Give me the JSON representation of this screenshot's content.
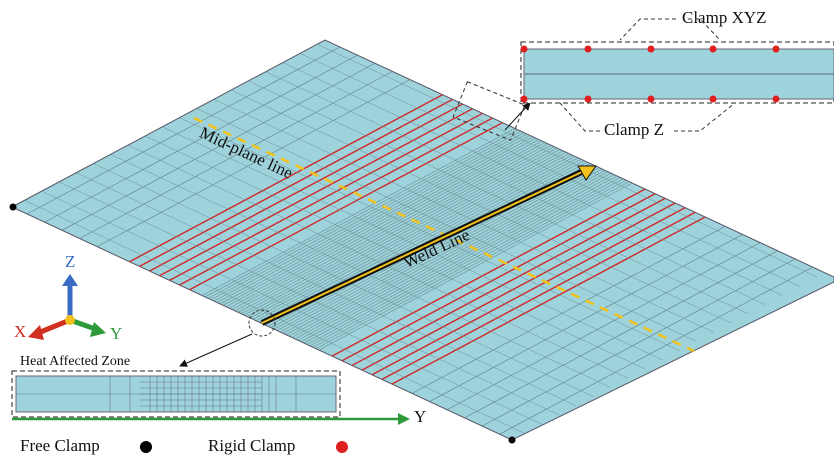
{
  "callouts": {
    "clamp_xyz": "Clamp XYZ",
    "clamp_z": "Clamp Z",
    "mid_plane": "Mid-plane line",
    "weld_line": "Weld Line",
    "haz": "Heat Affected Zone"
  },
  "axes": {
    "z": "Z",
    "x": "X",
    "y": "Y",
    "bottom_y": "Y"
  },
  "legend": {
    "free": "Free Clamp",
    "rigid": "Rigid Clamp"
  }
}
